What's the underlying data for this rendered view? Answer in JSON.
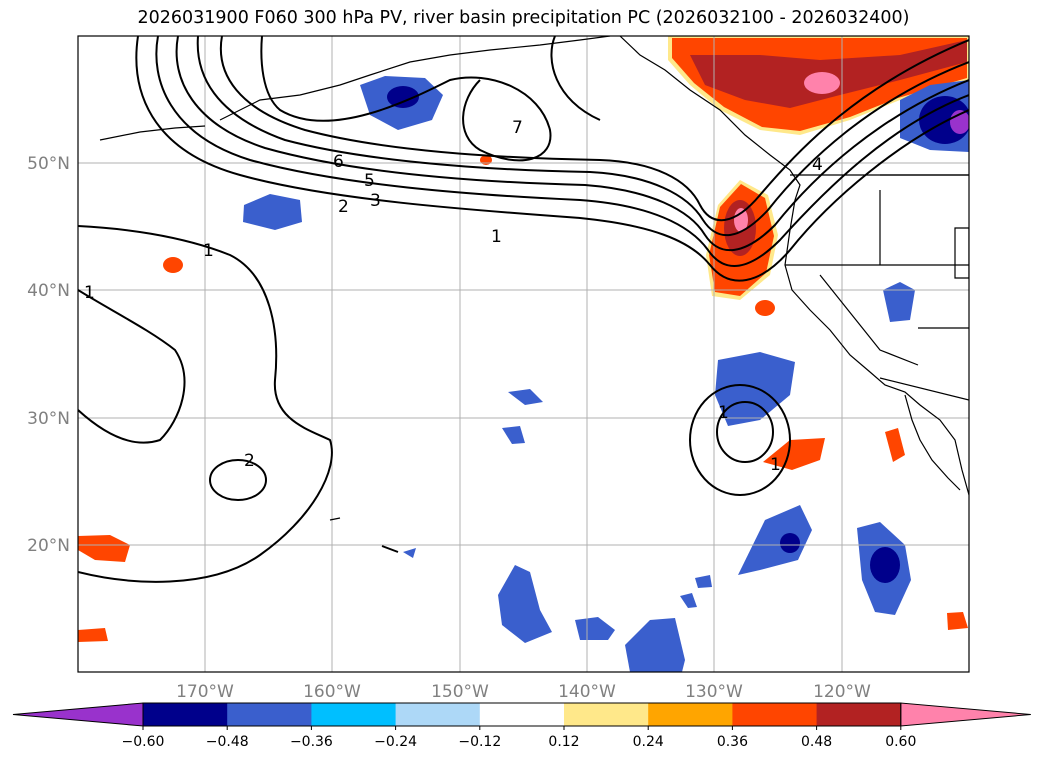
{
  "title": "2026031900 F060 300 hPa PV, river basin precipitation PC (2026032100 - 2026032400)",
  "map": {
    "lat_labels": [
      "50°N",
      "40°N",
      "30°N",
      "20°N"
    ],
    "lon_labels": [
      "170°W",
      "160°W",
      "150°W",
      "140°W",
      "130°W",
      "120°W"
    ],
    "contour_labels": [
      "1",
      "1",
      "1",
      "1",
      "1",
      "2",
      "2",
      "3",
      "4",
      "5",
      "6",
      "7"
    ]
  },
  "colorbar": {
    "ticks": [
      "−0.60",
      "−0.48",
      "−0.36",
      "−0.24",
      "−0.12",
      "0.12",
      "0.24",
      "0.36",
      "0.48",
      "0.60"
    ],
    "colors": [
      "#9932cc",
      "#00008b",
      "#3a5fcd",
      "#00bfff",
      "#add8f7",
      "#ffffff",
      "#ffe88a",
      "#ffa500",
      "#ff4500",
      "#b22222",
      "#ff82ab"
    ]
  }
}
